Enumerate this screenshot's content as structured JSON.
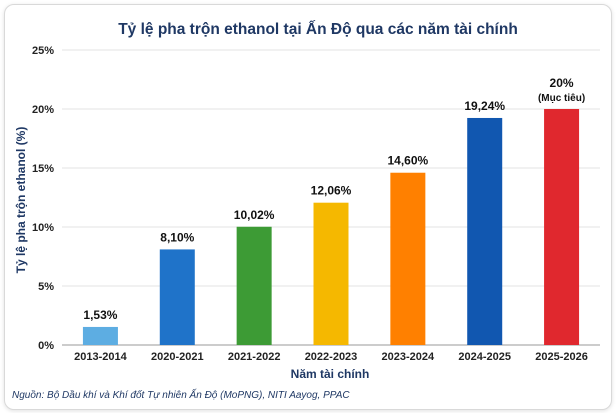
{
  "chart_data": {
    "type": "bar",
    "title": "Tỷ lệ pha trộn ethanol tại Ấn Độ qua các năm tài chính",
    "xlabel": "Năm tài chính",
    "ylabel": "Tỷ lệ pha trộn ethanol (%)",
    "ylim": [
      0,
      25
    ],
    "yticks": [
      "0%",
      "5%",
      "10%",
      "15%",
      "20%",
      "25%"
    ],
    "grid": true,
    "categories": [
      "2013-2014",
      "2020-2021",
      "2021-2022",
      "2022-2023",
      "2023-2024",
      "2024-2025",
      "2025-2026"
    ],
    "values": [
      1.53,
      8.1,
      10.02,
      12.06,
      14.6,
      19.24,
      20
    ],
    "data_labels": [
      "1,53%",
      "8,10%",
      "10,02%",
      "12,06%",
      "14,60%",
      "19,24%",
      "20%"
    ],
    "data_sublabels": [
      "",
      "",
      "",
      "",
      "",
      "",
      "(Mục tiêu)"
    ],
    "colors": [
      "#5dade2",
      "#1f73c9",
      "#3d9b35",
      "#f5b800",
      "#ff8000",
      "#1157b0",
      "#e0282e"
    ]
  },
  "source": "Nguồn: Bộ Dầu khí và Khí đốt Tự nhiên Ấn Độ (MoPNG), NITI Aayog, PPAC"
}
